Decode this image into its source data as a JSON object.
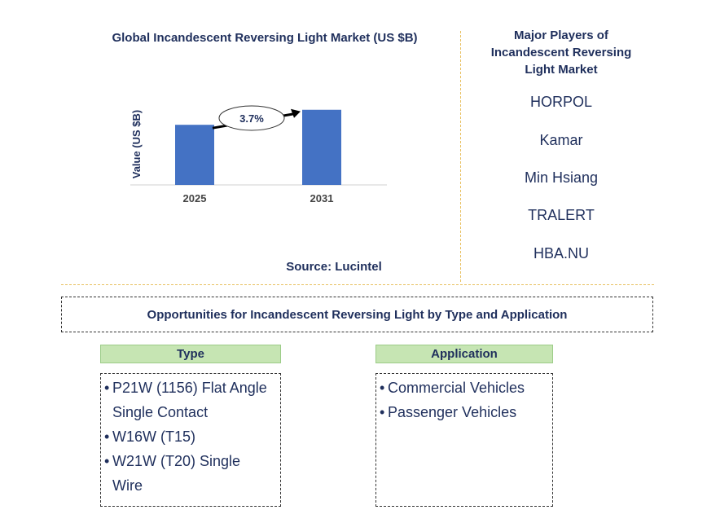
{
  "chart_data": {
    "type": "bar",
    "title": "Global Incandescent Reversing Light Market (US $B)",
    "ylabel": "Value (US $B)",
    "categories": [
      "2025",
      "2031"
    ],
    "values": [
      1.0,
      1.25
    ],
    "ylim": [
      0,
      1.45
    ],
    "bar_color": "#4472c4",
    "annotation": {
      "label": "3.7%"
    },
    "grid": false
  },
  "source": "Source: Lucintel",
  "players": {
    "title": "Major Players of Incandescent Reversing Light Market",
    "items": [
      "HORPOL",
      "Kamar",
      "Min Hsiang",
      "TRALERT",
      "HBA.NU"
    ]
  },
  "opportunities": {
    "title": "Opportunities for Incandescent Reversing Light by Type and Application",
    "type": {
      "header": "Type",
      "items": [
        "P21W (1156) Flat Angle Single Contact",
        "W16W (T15)",
        "W21W (T20) Single Wire"
      ]
    },
    "application": {
      "header": "Application",
      "items": [
        "Commercial Vehicles",
        "Passenger Vehicles"
      ]
    }
  },
  "colors": {
    "header_fill": "#c6e5b3",
    "text": "#1f2f5c",
    "separator": "#e8c060"
  }
}
